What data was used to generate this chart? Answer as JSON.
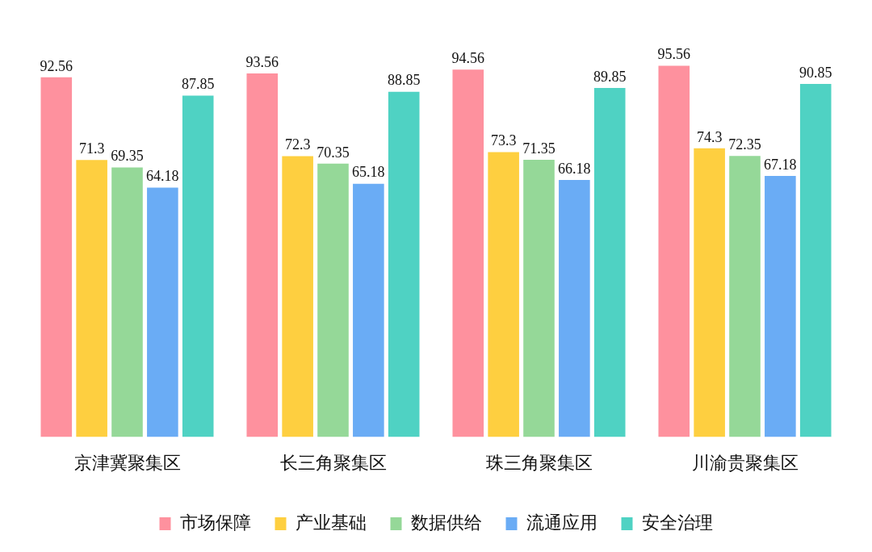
{
  "chart_data": {
    "type": "bar",
    "categories": [
      "京津冀聚集区",
      "长三角聚集区",
      "珠三角聚集区",
      "川渝贵聚集区"
    ],
    "series": [
      {
        "name": "市场保障",
        "color": "#fe919e",
        "values": [
          92.56,
          93.56,
          94.56,
          95.56
        ]
      },
      {
        "name": "产业基础",
        "color": "#fecf40",
        "values": [
          71.3,
          72.3,
          73.3,
          74.3
        ]
      },
      {
        "name": "数据供给",
        "color": "#95d898",
        "values": [
          69.35,
          70.35,
          71.35,
          72.35
        ]
      },
      {
        "name": "流通应用",
        "color": "#6aacf5",
        "values": [
          64.18,
          65.18,
          66.18,
          67.18
        ]
      },
      {
        "name": "安全治理",
        "color": "#4fd2c3",
        "values": [
          87.85,
          88.85,
          89.85,
          90.85
        ]
      }
    ],
    "data_labels": true,
    "legend": "bottom",
    "tick_labels": "x"
  }
}
